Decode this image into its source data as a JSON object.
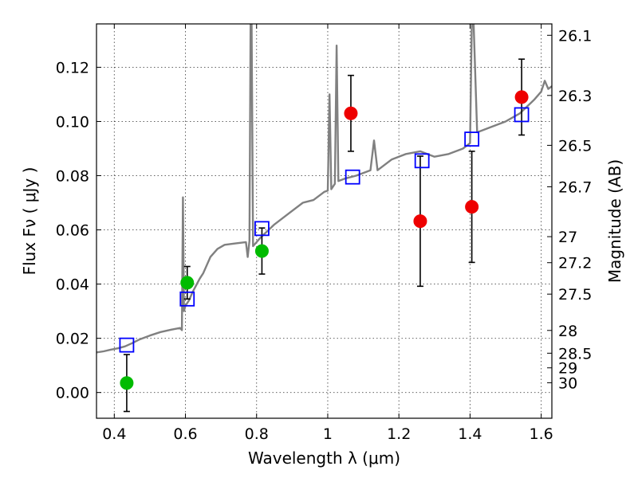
{
  "chart_data": {
    "type": "scatter",
    "xlabel": "Wavelength  λ (μm)",
    "ylabel": "Flux  Fν  ( μJy )",
    "y2label": "Magnitude (AB)",
    "xlim": [
      0.35,
      1.63
    ],
    "ylim": [
      -0.0095,
      0.136
    ],
    "x_ticks": [
      0.4,
      0.6,
      0.8,
      1.0,
      1.2,
      1.4,
      1.6
    ],
    "x_tick_labels": [
      "0.4",
      "0.6",
      "0.8",
      "1",
      "1.2",
      "1.4",
      "1.6"
    ],
    "y_ticks": [
      0.0,
      0.02,
      0.04,
      0.06,
      0.08,
      0.1,
      0.12
    ],
    "y_tick_labels": [
      "0.00",
      "0.02",
      "0.04",
      "0.06",
      "0.08",
      "0.10",
      "0.12"
    ],
    "y2_ticks": [
      {
        "label": "26.1",
        "flux": 0.1318
      },
      {
        "label": "26.3",
        "flux": 0.1096
      },
      {
        "label": "26.5",
        "flux": 0.0912
      },
      {
        "label": "26.7",
        "flux": 0.0759
      },
      {
        "label": "27",
        "flux": 0.0575
      },
      {
        "label": "27.2",
        "flux": 0.0479
      },
      {
        "label": "27.5",
        "flux": 0.0363
      },
      {
        "label": "28",
        "flux": 0.0229
      },
      {
        "label": "28.5",
        "flux": 0.0145
      },
      {
        "label": "29",
        "flux": 0.0091
      },
      {
        "label": "30",
        "flux": 0.0036
      }
    ],
    "grid": true,
    "series": [
      {
        "kind": "line",
        "color": "#808080",
        "points": [
          [
            0.35,
            0.0148
          ],
          [
            0.37,
            0.0152
          ],
          [
            0.39,
            0.0158
          ],
          [
            0.41,
            0.0163
          ],
          [
            0.43,
            0.017
          ],
          [
            0.45,
            0.0182
          ],
          [
            0.47,
            0.0195
          ],
          [
            0.5,
            0.021
          ],
          [
            0.53,
            0.0223
          ],
          [
            0.56,
            0.0232
          ],
          [
            0.585,
            0.0238
          ],
          [
            0.59,
            0.023
          ],
          [
            0.593,
            0.072
          ],
          [
            0.596,
            0.03
          ],
          [
            0.6,
            0.032
          ],
          [
            0.61,
            0.034
          ],
          [
            0.62,
            0.037
          ],
          [
            0.63,
            0.0395
          ],
          [
            0.64,
            0.042
          ],
          [
            0.65,
            0.044
          ],
          [
            0.66,
            0.047
          ],
          [
            0.67,
            0.05
          ],
          [
            0.69,
            0.053
          ],
          [
            0.71,
            0.0545
          ],
          [
            0.74,
            0.055
          ],
          [
            0.77,
            0.0555
          ],
          [
            0.775,
            0.05
          ],
          [
            0.78,
            0.056
          ],
          [
            0.783,
            0.136
          ],
          [
            0.786,
            0.136
          ],
          [
            0.79,
            0.054
          ],
          [
            0.81,
            0.057
          ],
          [
            0.85,
            0.062
          ],
          [
            0.89,
            0.066
          ],
          [
            0.93,
            0.07
          ],
          [
            0.96,
            0.071
          ],
          [
            0.99,
            0.074
          ],
          [
            1.0,
            0.0745
          ],
          [
            1.005,
            0.11
          ],
          [
            1.01,
            0.075
          ],
          [
            1.02,
            0.077
          ],
          [
            1.025,
            0.128
          ],
          [
            1.03,
            0.078
          ],
          [
            1.05,
            0.079
          ],
          [
            1.08,
            0.08
          ],
          [
            1.1,
            0.081
          ],
          [
            1.12,
            0.082
          ],
          [
            1.13,
            0.093
          ],
          [
            1.14,
            0.082
          ],
          [
            1.18,
            0.086
          ],
          [
            1.22,
            0.088
          ],
          [
            1.26,
            0.089
          ],
          [
            1.3,
            0.087
          ],
          [
            1.34,
            0.088
          ],
          [
            1.38,
            0.09
          ],
          [
            1.4,
            0.092
          ],
          [
            1.405,
            0.136
          ],
          [
            1.41,
            0.136
          ],
          [
            1.42,
            0.096
          ],
          [
            1.46,
            0.098
          ],
          [
            1.5,
            0.1
          ],
          [
            1.54,
            0.103
          ],
          [
            1.58,
            0.108
          ],
          [
            1.6,
            0.111
          ],
          [
            1.61,
            0.115
          ],
          [
            1.62,
            0.112
          ],
          [
            1.63,
            0.113
          ]
        ]
      },
      {
        "kind": "markers",
        "marker": "square",
        "color": "#0000ff",
        "points": [
          [
            0.435,
            0.0175
          ],
          [
            0.605,
            0.0345
          ],
          [
            0.815,
            0.0605
          ],
          [
            1.07,
            0.0795
          ],
          [
            1.265,
            0.0855
          ],
          [
            1.405,
            0.0935
          ],
          [
            1.545,
            0.1025
          ]
        ]
      },
      {
        "kind": "markers",
        "marker": "circle",
        "color": "#00bb00",
        "points": [
          {
            "x": 0.435,
            "y": 0.0035,
            "err": 0.0105
          },
          {
            "x": 0.605,
            "y": 0.0405,
            "err": 0.006
          },
          {
            "x": 0.815,
            "y": 0.0522,
            "err": 0.0085
          }
        ]
      },
      {
        "kind": "markers",
        "marker": "circle",
        "color": "#ee0000",
        "points": [
          {
            "x": 1.065,
            "y": 0.103,
            "err": 0.014
          },
          {
            "x": 1.26,
            "y": 0.0632,
            "err": 0.024
          },
          {
            "x": 1.405,
            "y": 0.0685,
            "err": 0.0205
          },
          {
            "x": 1.545,
            "y": 0.109,
            "err": 0.014
          }
        ]
      }
    ]
  }
}
